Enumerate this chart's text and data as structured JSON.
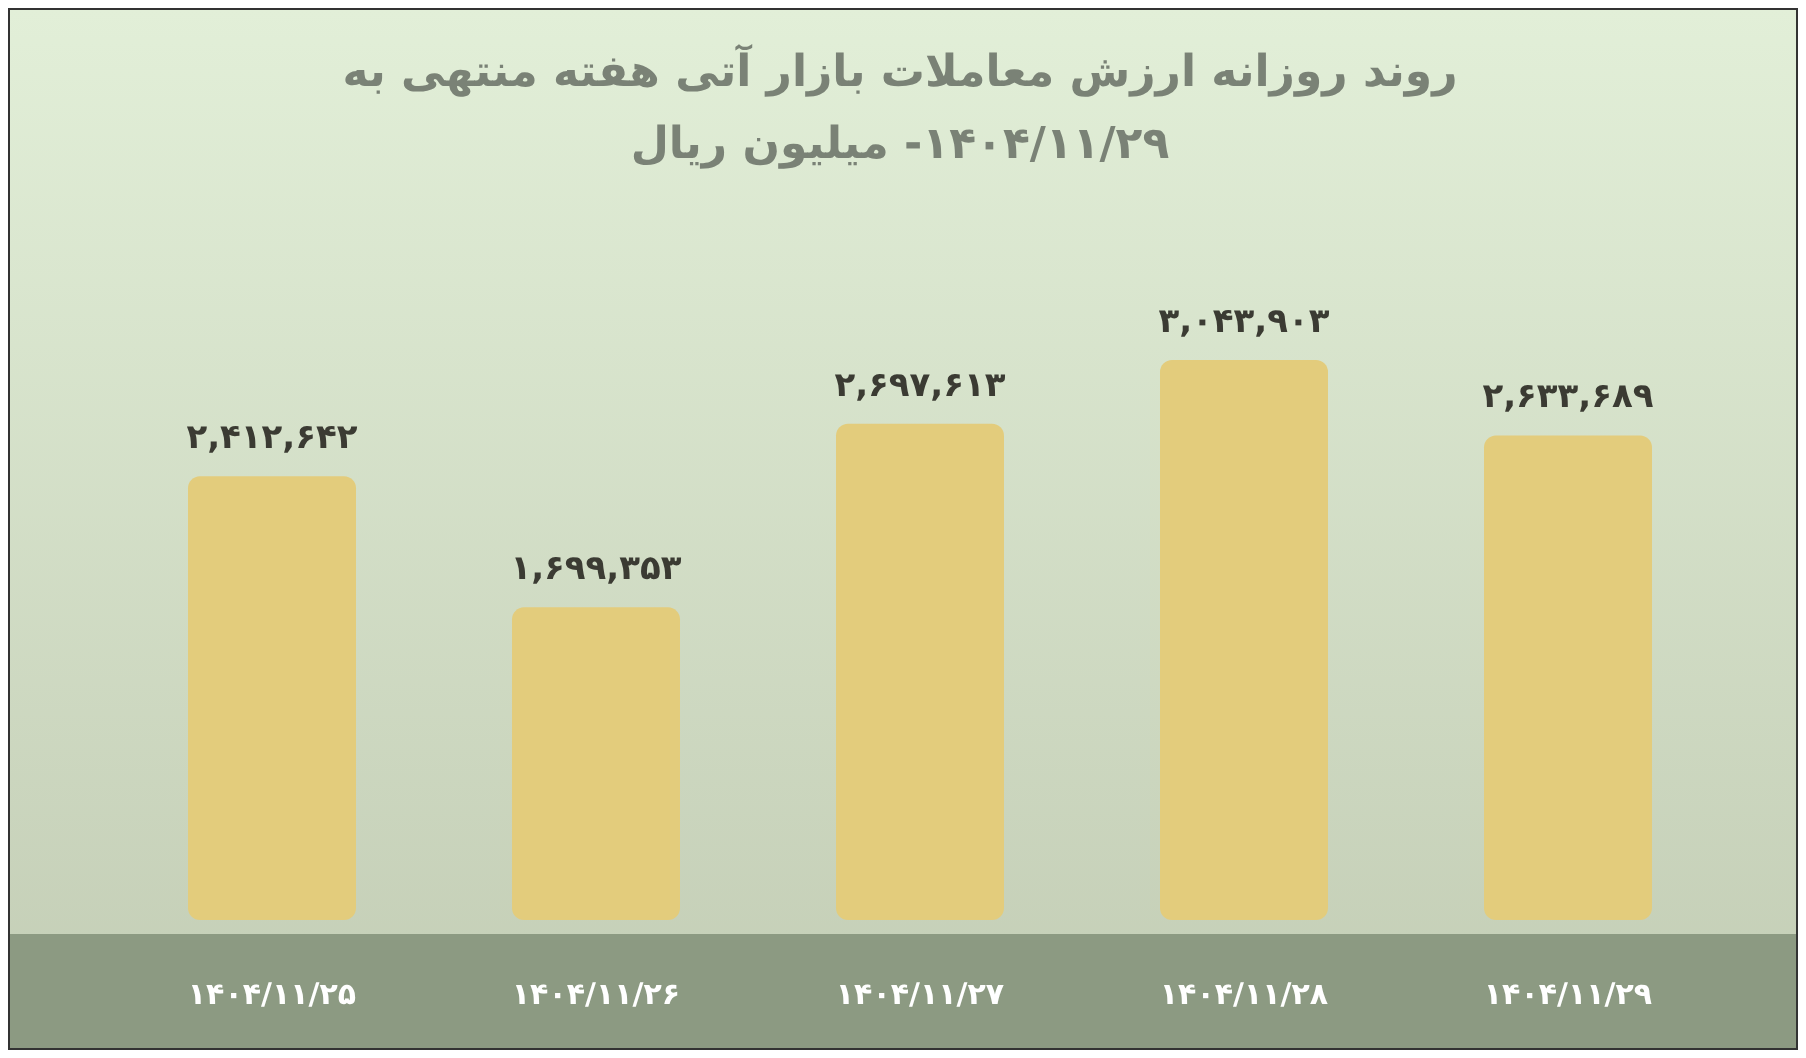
{
  "chart_data": {
    "type": "bar",
    "title": "روند روزانه ارزش معاملات بازار آتی هفته منتهی به ۱۴۰۴/۱۱/۲۹- میلیون ریال",
    "categories": [
      "۱۴۰۴/۱۱/۲۵",
      "۱۴۰۴/۱۱/۲۶",
      "۱۴۰۴/۱۱/۲۷",
      "۱۴۰۴/۱۱/۲۸",
      "۱۴۰۴/۱۱/۲۹"
    ],
    "values": [
      2412642,
      1699353,
      2697613,
      3043903,
      2633689
    ],
    "value_labels": [
      "۲,۴۱۲,۶۴۲",
      "۱,۶۹۹,۳۵۳",
      "۲,۶۹۷,۶۱۳",
      "۳,۰۴۳,۹۰۳",
      "۲,۶۳۳,۶۸۹"
    ],
    "color": "#e3cc7c"
  }
}
